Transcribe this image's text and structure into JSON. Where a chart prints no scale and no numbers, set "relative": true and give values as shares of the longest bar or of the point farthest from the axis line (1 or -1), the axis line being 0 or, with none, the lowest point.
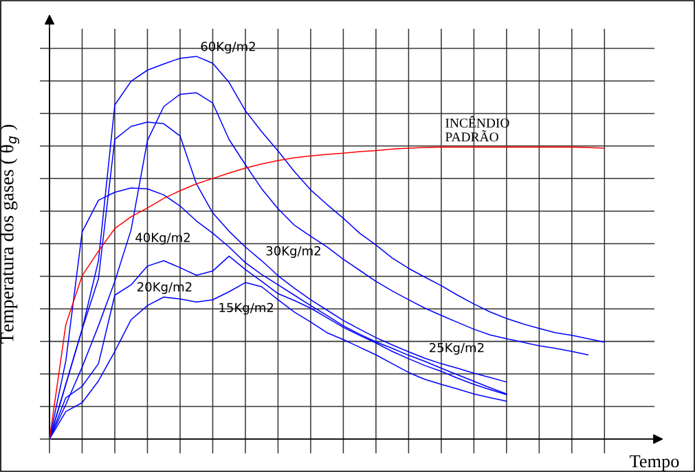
{
  "chart_data": {
    "type": "line",
    "relative": true,
    "grid": true,
    "tick_labels": false,
    "xlabel": "Tempo",
    "ylabel": "Temperatura dos gases ( θ$_{g}$ )",
    "categories": [
      null,
      null,
      null,
      null,
      null,
      null,
      null,
      null,
      null,
      null,
      null,
      null,
      null,
      null,
      null,
      null,
      null,
      null,
      null,
      null,
      null,
      null,
      null,
      null,
      null,
      null,
      null,
      null,
      null,
      null,
      null,
      null,
      null,
      null,
      null
    ],
    "series": [
      {
        "name": "60Kg/m2",
        "color": "#0000ff",
        "values": [
          0,
          0.143,
          0.287,
          0.466,
          0.873,
          0.935,
          0.964,
          0.98,
          0.995,
          1.0,
          0.982,
          0.932,
          0.858,
          0.803,
          0.753,
          0.699,
          0.651,
          0.613,
          0.577,
          0.538,
          0.507,
          0.473,
          0.446,
          0.423,
          0.401,
          0.376,
          0.353,
          0.332,
          0.315,
          0.301,
          0.289,
          0.278,
          0.271,
          0.262,
          0.253
        ]
      },
      {
        "name": "40Kg/m2",
        "color": "#0000ff",
        "values": [
          0,
          0.09,
          0.188,
          0.296,
          0.412,
          0.547,
          0.78,
          0.869,
          0.901,
          0.905,
          0.878,
          0.783,
          0.717,
          0.654,
          0.602,
          0.559,
          0.53,
          0.502,
          0.47,
          0.441,
          0.412,
          0.387,
          0.364,
          0.342,
          0.323,
          0.305,
          0.287,
          0.272,
          0.262,
          0.253,
          0.244,
          0.237,
          0.229,
          0.22,
          null
        ]
      },
      {
        "name": "30Kg/m2",
        "color": "#0000ff",
        "values": [
          0,
          0.143,
          0.287,
          0.419,
          0.783,
          0.817,
          0.828,
          0.824,
          0.792,
          0.667,
          0.591,
          0.543,
          0.502,
          0.466,
          0.427,
          0.394,
          0.364,
          0.337,
          0.31,
          0.287,
          0.265,
          0.246,
          0.228,
          0.211,
          0.197,
          0.185,
          0.172,
          0.161,
          0.149,
          null,
          null,
          null,
          null,
          null,
          null
        ]
      },
      {
        "name": "25Kg/m2",
        "color": "#0000ff",
        "values": [
          0,
          0.204,
          0.541,
          0.624,
          0.645,
          0.656,
          0.654,
          0.638,
          0.609,
          0.57,
          0.538,
          0.502,
          0.461,
          0.43,
          0.403,
          0.376,
          0.349,
          0.323,
          0.296,
          0.274,
          0.254,
          0.237,
          0.219,
          0.203,
          0.185,
          0.168,
          0.151,
          0.134,
          0.118,
          null,
          null,
          null,
          null,
          null,
          null
        ]
      },
      {
        "name": "20Kg/m2",
        "color": "#0000ff",
        "values": [
          0,
          0.108,
          0.138,
          0.197,
          0.376,
          0.403,
          0.452,
          0.466,
          0.448,
          0.428,
          0.439,
          0.478,
          0.443,
          0.412,
          0.38,
          0.362,
          0.342,
          0.317,
          0.292,
          0.271,
          0.251,
          0.229,
          0.21,
          0.192,
          0.177,
          0.159,
          0.143,
          0.129,
          0.116,
          null,
          null,
          null,
          null,
          null,
          null
        ]
      },
      {
        "name": "15Kg/m2",
        "color": "#0000ff",
        "values": [
          0,
          0.072,
          0.095,
          0.152,
          0.229,
          0.312,
          0.349,
          0.371,
          0.366,
          0.358,
          0.364,
          0.385,
          0.409,
          0.398,
          0.364,
          0.332,
          0.306,
          0.278,
          0.26,
          0.24,
          0.22,
          0.197,
          0.174,
          0.156,
          0.143,
          0.131,
          0.118,
          0.108,
          0.099,
          null,
          null,
          null,
          null,
          null,
          null
        ]
      },
      {
        "name": "INCÊNDIO\nPADRÃO",
        "color": "#ff0000",
        "values": [
          0,
          0.299,
          0.427,
          0.491,
          0.55,
          0.581,
          0.604,
          0.629,
          0.649,
          0.667,
          0.681,
          0.695,
          0.708,
          0.719,
          0.728,
          0.735,
          0.74,
          0.744,
          0.747,
          0.751,
          0.754,
          0.758,
          0.76,
          0.762,
          0.763,
          0.763,
          0.763,
          0.763,
          0.763,
          0.763,
          0.763,
          0.763,
          0.763,
          0.762,
          0.76
        ]
      }
    ]
  }
}
